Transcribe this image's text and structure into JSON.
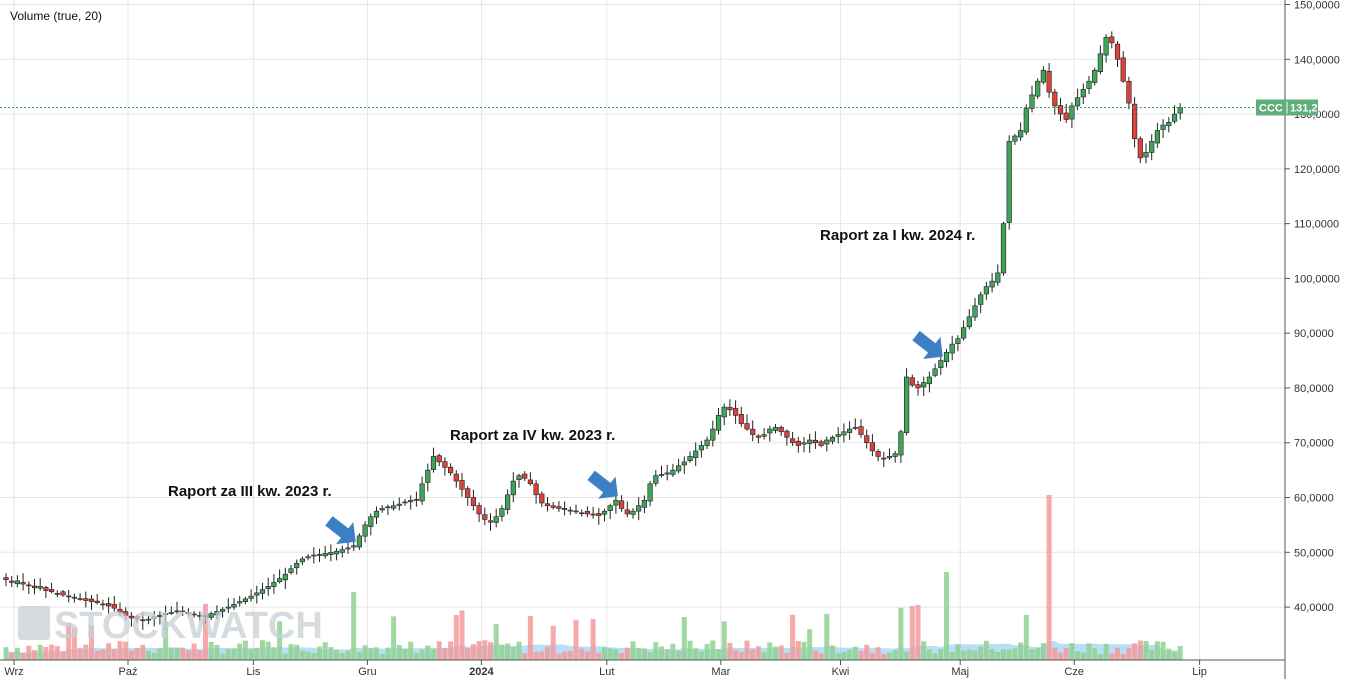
{
  "chart_data": {
    "type": "candlestick",
    "ticker": "CCC",
    "last_price_label": "131,2000",
    "indicator_label": "Volume (true, 20)",
    "watermark": "STOCKWATCH",
    "y_axis": {
      "side": "right",
      "range": [
        31,
        150
      ],
      "ticks": [
        40,
        50,
        60,
        70,
        80,
        90,
        100,
        110,
        120,
        130,
        140,
        150
      ],
      "tick_labels": [
        "40,0000",
        "50,0000",
        "60,0000",
        "70,0000",
        "80,0000",
        "90,0000",
        "100,0000",
        "110,0000",
        "120,0000",
        "130,0000",
        "140,0000",
        "150,0000"
      ]
    },
    "x_axis": {
      "labels": [
        "Wrz",
        "Paź",
        "Lis",
        "Gru",
        "2024",
        "Lut",
        "Mar",
        "Kwi",
        "Maj",
        "Cze",
        "Lip"
      ],
      "bold_labels": [
        "2024"
      ],
      "label_day_index": [
        0,
        20,
        42,
        62,
        82,
        104,
        124,
        145,
        166,
        186,
        208
      ],
      "total_days": 212
    },
    "grid": true,
    "close_series": [
      45,
      44.5,
      44.8,
      44.2,
      44,
      43.5,
      43.8,
      43,
      42.8,
      42.5,
      42.2,
      42,
      41.8,
      41.5,
      41.2,
      41,
      40.8,
      40.5,
      40.2,
      39.8,
      39,
      38.5,
      38,
      37.8,
      37.5,
      37.8,
      38.2,
      38.5,
      38.8,
      39,
      39.3,
      39.2,
      38.9,
      38.6,
      38.5,
      38.3,
      38.8,
      39.2,
      39.6,
      40,
      40.5,
      41,
      41.5,
      42,
      42.6,
      43.2,
      43.8,
      44.5,
      45.2,
      46,
      47,
      48,
      48.8,
      49.2,
      49.5,
      49.6,
      49.8,
      50,
      50.2,
      50.5,
      50.8,
      51.2,
      53,
      55,
      56.5,
      57.5,
      58,
      58.3,
      58.5,
      58.8,
      59.2,
      59.5,
      59.6,
      62.5,
      65,
      67.5,
      66.5,
      65.5,
      64.5,
      63,
      61.5,
      60,
      58.5,
      57,
      56,
      55.5,
      56.5,
      58,
      60.5,
      63,
      64,
      63.5,
      62.5,
      60.5,
      59,
      58.5,
      58.2,
      58,
      57.8,
      57.7,
      57.5,
      57.2,
      57,
      56.8,
      56.7,
      57.5,
      58.5,
      59.5,
      58,
      57,
      57.5,
      58.5,
      59.5,
      62.5,
      64,
      64.2,
      64.5,
      65,
      65.8,
      66.5,
      67.5,
      68.5,
      69.5,
      70.5,
      72.5,
      75,
      76.5,
      76,
      75,
      73.5,
      72.5,
      71.5,
      71,
      71.5,
      72.5,
      72.8,
      72,
      71,
      70,
      69.5,
      70,
      70.5,
      70,
      69.5,
      70.5,
      71,
      71.5,
      72,
      72.5,
      72.8,
      71.5,
      70,
      68.5,
      67.5,
      67,
      67.5,
      68,
      72,
      82,
      80.5,
      80,
      81,
      82,
      83.5,
      85,
      86.5,
      88,
      89,
      91,
      93,
      95,
      97,
      98.5,
      99.5,
      101,
      110,
      125,
      126,
      127,
      131,
      133.5,
      136,
      138,
      134,
      131.5,
      130,
      129,
      131.5,
      133,
      134.5,
      136,
      138,
      141,
      144,
      143,
      140,
      136,
      132,
      125.5,
      122,
      123,
      125,
      127,
      128,
      128.5,
      130,
      131.2
    ],
    "volume_note": "relative volume bars, green = up day, red = down day, blue band = 20-period average",
    "annotations": [
      {
        "text": "Raport za III kw. 2023 r.",
        "arrow_day": 61
      },
      {
        "text": "Raport za IV kw. 2023 r.",
        "arrow_day": 107
      },
      {
        "text": "Raport za I kw. 2024 r.",
        "arrow_day": 164
      }
    ]
  }
}
